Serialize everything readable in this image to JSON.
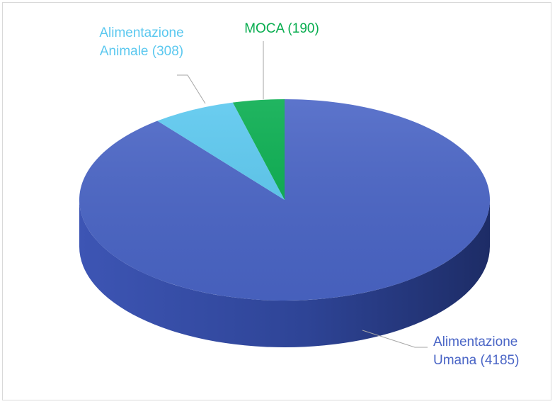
{
  "chart_data": {
    "type": "pie",
    "title": "",
    "style": "3d",
    "legend": "none",
    "slices": [
      {
        "label": "Alimentazione Umana (4185)",
        "lines": [
          "Alimentazione",
          "Umana (4185)"
        ],
        "value": 4185,
        "color": "#4a65c6",
        "side_color": "#3a52ad",
        "label_color": "#4a65c6"
      },
      {
        "label": "Alimentazione Animale (308)",
        "lines": [
          "Alimentazione",
          "Animale (308)"
        ],
        "value": 308,
        "color": "#5bc8ef",
        "side_color": "#48b3da",
        "label_color": "#5bc8ef"
      },
      {
        "label": "MOCA (190)",
        "lines": [
          "MOCA (190)"
        ],
        "value": 190,
        "color": "#08ad4f",
        "side_color": "#078f41",
        "label_color": "#08ad4f"
      }
    ]
  }
}
